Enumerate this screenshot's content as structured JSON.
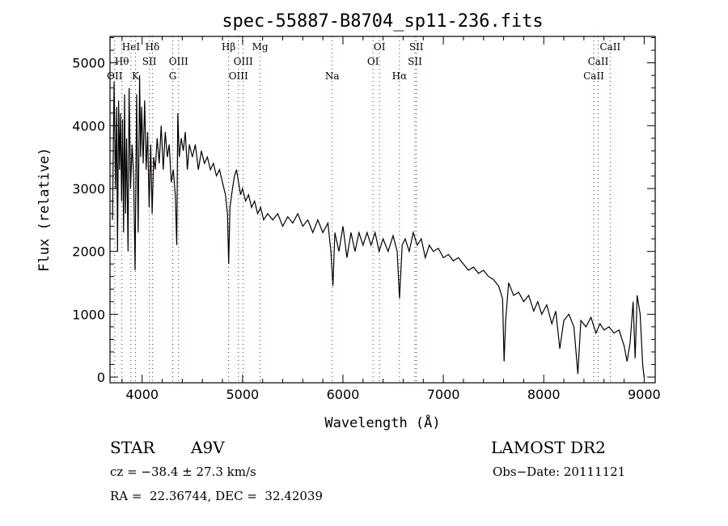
{
  "chart_data": {
    "type": "line",
    "title": "spec-55887-B8704_sp11-236.fits",
    "xlabel": "Wavelength (Å)",
    "ylabel": "Flux (relative)",
    "xlim": [
      3680,
      9110
    ],
    "ylim": [
      -90,
      5420
    ],
    "xticks": [
      4000,
      5000,
      6000,
      7000,
      8000,
      9000
    ],
    "yticks": [
      0,
      1000,
      2000,
      3000,
      4000,
      5000
    ],
    "grid": false,
    "line_color": "#000000",
    "marker_line_color": "#8b1a1a",
    "spectral_lines": [
      {
        "label": "OII",
        "wavelength": 3727,
        "row": 2
      },
      {
        "label": "Hθ",
        "wavelength": 3798,
        "row": 1
      },
      {
        "label": "HeI",
        "wavelength": 3889,
        "row": 0
      },
      {
        "label": "K",
        "wavelength": 3934,
        "row": 2
      },
      {
        "label": "SII",
        "wavelength": 4072,
        "row": 1
      },
      {
        "label": "Hδ",
        "wavelength": 4102,
        "row": 0
      },
      {
        "label": "G",
        "wavelength": 4305,
        "row": 2
      },
      {
        "label": "OIII",
        "wavelength": 4363,
        "row": 1
      },
      {
        "label": "Hβ",
        "wavelength": 4861,
        "row": 0
      },
      {
        "label": "OIII",
        "wavelength": 4959,
        "row": 2
      },
      {
        "label": "OIII",
        "wavelength": 5007,
        "row": 1
      },
      {
        "label": "Mg",
        "wavelength": 5175,
        "row": 0
      },
      {
        "label": "Na",
        "wavelength": 5893,
        "row": 2
      },
      {
        "label": "OI",
        "wavelength": 6300,
        "row": 1
      },
      {
        "label": "OI",
        "wavelength": 6364,
        "row": 0
      },
      {
        "label": "Hα",
        "wavelength": 6563,
        "row": 2
      },
      {
        "label": "SII",
        "wavelength": 6717,
        "row": 1
      },
      {
        "label": "SII",
        "wavelength": 6731,
        "row": 0
      },
      {
        "label": "CaII",
        "wavelength": 8498,
        "row": 2
      },
      {
        "label": "CaII",
        "wavelength": 8542,
        "row": 1
      },
      {
        "label": "CaII",
        "wavelength": 8662,
        "row": 0
      }
    ],
    "series": [
      {
        "name": "flux",
        "x": [
          3705,
          3720,
          3735,
          3745,
          3755,
          3765,
          3775,
          3785,
          3795,
          3805,
          3815,
          3825,
          3835,
          3845,
          3860,
          3870,
          3885,
          3900,
          3915,
          3930,
          3945,
          3960,
          3975,
          3985,
          3995,
          4010,
          4025,
          4040,
          4055,
          4070,
          4085,
          4100,
          4115,
          4130,
          4150,
          4170,
          4190,
          4210,
          4230,
          4250,
          4270,
          4290,
          4310,
          4330,
          4345,
          4355,
          4370,
          4390,
          4410,
          4430,
          4450,
          4470,
          4500,
          4530,
          4560,
          4590,
          4620,
          4650,
          4680,
          4710,
          4740,
          4770,
          4800,
          4830,
          4850,
          4862,
          4875,
          4900,
          4920,
          4940,
          4960,
          4980,
          5000,
          5030,
          5060,
          5090,
          5120,
          5150,
          5180,
          5210,
          5250,
          5300,
          5350,
          5400,
          5450,
          5500,
          5550,
          5600,
          5650,
          5700,
          5750,
          5800,
          5850,
          5880,
          5900,
          5920,
          5960,
          6000,
          6040,
          6080,
          6120,
          6160,
          6200,
          6240,
          6280,
          6320,
          6360,
          6400,
          6450,
          6500,
          6540,
          6563,
          6590,
          6620,
          6660,
          6700,
          6740,
          6780,
          6820,
          6860,
          6900,
          6950,
          7000,
          7050,
          7100,
          7150,
          7200,
          7250,
          7300,
          7350,
          7400,
          7450,
          7500,
          7550,
          7590,
          7605,
          7620,
          7650,
          7700,
          7750,
          7800,
          7850,
          7900,
          7940,
          7980,
          8030,
          8080,
          8120,
          8160,
          8200,
          8250,
          8300,
          8340,
          8370,
          8420,
          8470,
          8520,
          8560,
          8600,
          8650,
          8700,
          8750,
          8800,
          8830,
          8860,
          8890,
          8910,
          8930,
          8960,
          8985,
          9000
        ],
        "y": [
          2500,
          4700,
          3000,
          4300,
          2000,
          4400,
          3300,
          4200,
          2800,
          4100,
          2300,
          4500,
          2600,
          3800,
          2000,
          4600,
          3000,
          3700,
          3200,
          1700,
          4500,
          2300,
          4800,
          3500,
          4300,
          3400,
          4400,
          3300,
          3900,
          2700,
          3700,
          2600,
          3500,
          3300,
          3800,
          3400,
          4000,
          3300,
          3900,
          3500,
          3700,
          3100,
          3300,
          2900,
          2100,
          4200,
          3500,
          3800,
          3600,
          3900,
          3300,
          3700,
          3500,
          3700,
          3300,
          3600,
          3400,
          3500,
          3300,
          3400,
          3200,
          3300,
          3100,
          2900,
          2600,
          1800,
          2700,
          3000,
          3200,
          3300,
          3100,
          2900,
          3000,
          2800,
          2900,
          2700,
          2800,
          2600,
          2700,
          2500,
          2600,
          2500,
          2600,
          2400,
          2550,
          2450,
          2600,
          2400,
          2500,
          2300,
          2500,
          2300,
          2450,
          2000,
          1450,
          2300,
          2000,
          2400,
          1900,
          2300,
          2000,
          2300,
          2100,
          2300,
          2100,
          2300,
          2000,
          2200,
          2000,
          2250,
          2000,
          1250,
          2100,
          2200,
          2000,
          2300,
          2100,
          2200,
          1900,
          2100,
          2000,
          2050,
          1900,
          1950,
          1850,
          1900,
          1800,
          1700,
          1750,
          1650,
          1700,
          1600,
          1550,
          1450,
          1250,
          250,
          900,
          1500,
          1300,
          1350,
          1200,
          1300,
          1050,
          1200,
          1000,
          1150,
          850,
          1050,
          450,
          900,
          1000,
          800,
          50,
          900,
          800,
          950,
          700,
          850,
          750,
          800,
          700,
          750,
          500,
          250,
          550,
          1200,
          300,
          1300,
          1000,
          200,
          0
        ]
      }
    ]
  },
  "info": {
    "object_class": "STAR",
    "subclass": "A9V",
    "survey": "LAMOST DR2",
    "cz": "cz = −38.4 ± 27.3 km/s",
    "obs_date": "Obs−Date: 20111121",
    "coords": "RA =  22.36744, DEC =  32.42039"
  }
}
